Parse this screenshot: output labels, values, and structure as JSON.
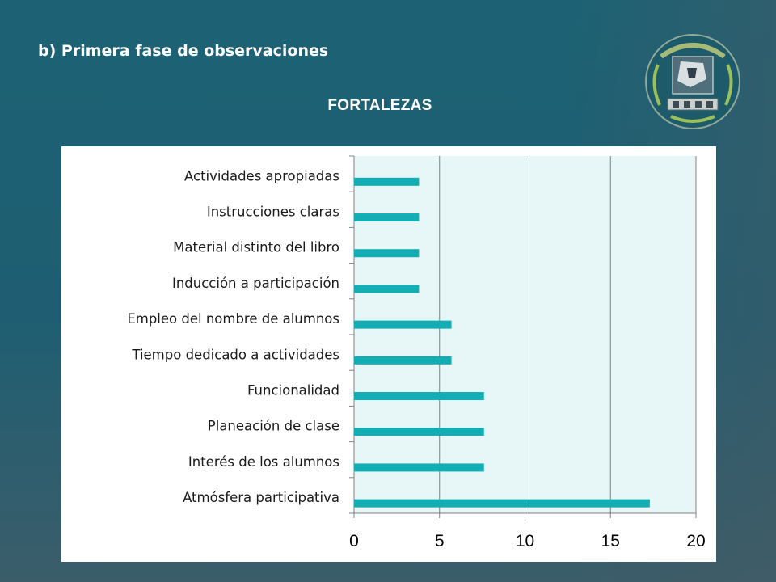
{
  "slide": {
    "subtitle": "b) Primera fase de observaciones",
    "chart_title": "FORTALEZAS"
  },
  "logo": {
    "icon": "institutional-seal-icon"
  },
  "colors": {
    "background": "#1c6274",
    "bar": "#13aeb3",
    "plot_area": "#e7f6f7",
    "gridline": "#808080"
  },
  "chart_data": {
    "type": "bar",
    "orientation": "horizontal",
    "title": "FORTALEZAS",
    "categories": [
      "Actividades apropiadas",
      "Instrucciones claras",
      "Material distinto del libro",
      "Inducción a participación",
      "Empleo del nombre de alumnos",
      "Tiempo dedicado a actividades",
      "Funcionalidad",
      "Planeación de clase",
      "Interés de los alumnos",
      "Atmósfera participativa"
    ],
    "values": [
      3.8,
      3.8,
      3.8,
      3.8,
      5.7,
      5.7,
      7.6,
      7.6,
      7.6,
      17.3
    ],
    "xlim": [
      0,
      20
    ],
    "xticks": [
      "0",
      "5",
      "10",
      "15",
      "20"
    ],
    "grid": true
  }
}
